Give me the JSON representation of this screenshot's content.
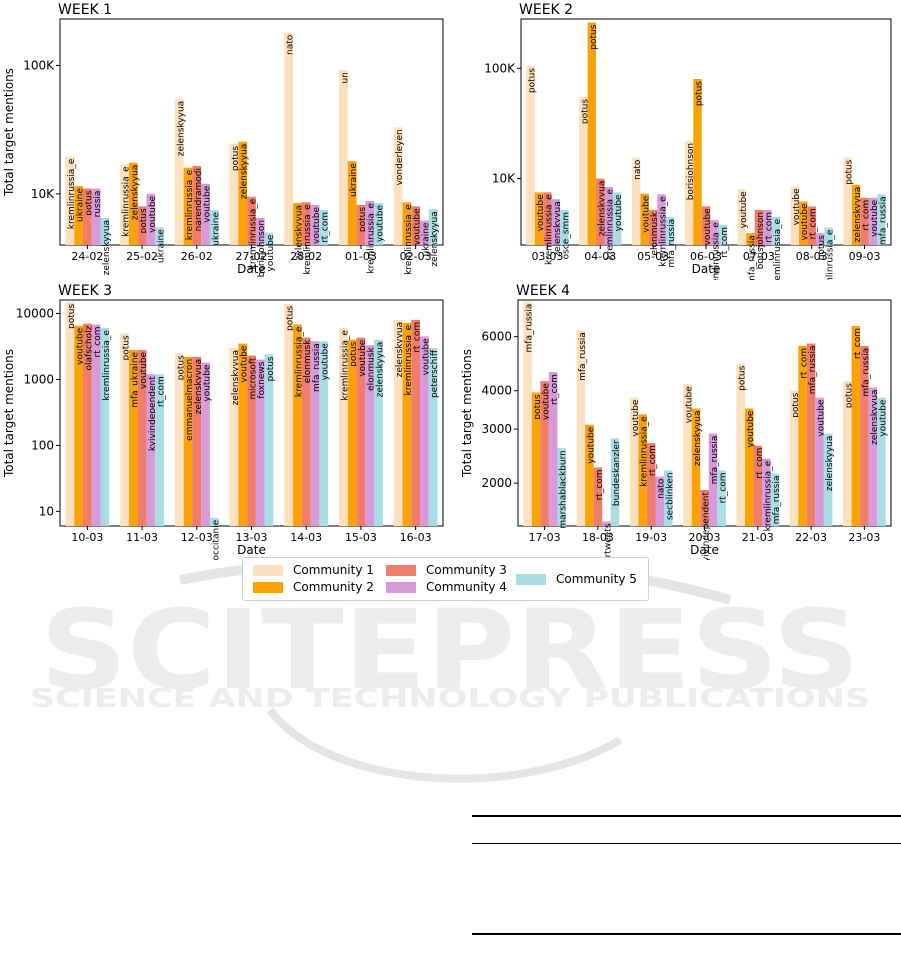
{
  "colors": {
    "Community 1": "#fde0bd",
    "Community 2": "#fca209",
    "Community 3": "#f07c6c",
    "Community 4": "#d79ada",
    "Community 5": "#a7dde3"
  },
  "legend": {
    "items": [
      "Community 1",
      "Community 2",
      "Community 3",
      "Community 4",
      "Community 5"
    ]
  },
  "watermark": {
    "line1": "SCITEPRESS",
    "line2": "SCIENCE AND TECHNOLOGY PUBLICATIONS"
  },
  "chart_data": [
    {
      "type": "bar",
      "title": "WEEK 1",
      "xlabel": "Date",
      "ylabel": "Total target mentions",
      "scale": "log",
      "ylim": [
        4000,
        230000
      ],
      "yticks": [
        10000,
        100000
      ],
      "ytick_labels": [
        "10K",
        "100K"
      ],
      "grid": false,
      "categories": [
        "24-02",
        "25-02",
        "26-02",
        "27-02",
        "28-02",
        "01-03",
        "02-03"
      ],
      "series": [
        {
          "name": "Community 1",
          "values": [
            19500,
            17000,
            55000,
            24500,
            180000,
            92000,
            33000
          ],
          "labels": [
            "kremlinrussia_e",
            "kremlinrussia_e",
            "zelenskyyua",
            "potus",
            "nato",
            "un",
            "vonderleyen"
          ]
        },
        {
          "name": "Community 2",
          "values": [
            11500,
            17500,
            16000,
            25500,
            8500,
            18000,
            8600
          ],
          "labels": [
            "ukraine",
            "zelenskyyua",
            "kremlinrussia_e",
            "zelenskyyua",
            "zelenskyyua",
            "ukraine",
            "kremlinrussia_e"
          ]
        },
        {
          "name": "Community 3",
          "values": [
            11000,
            8000,
            16500,
            9500,
            8600,
            8200,
            8000
          ],
          "labels": [
            "potus",
            "potus",
            "narendramodi",
            "kremlinrussia_e",
            "kremlinrussia_e",
            "potus",
            "youtube"
          ]
        },
        {
          "name": "Community 4",
          "values": [
            11000,
            10000,
            12000,
            6500,
            8200,
            8800,
            6200
          ],
          "labels": [
            "russia",
            "youtube",
            "youtube",
            "borisjohnson",
            "youtube",
            "kremlinrussia_e",
            "ukraine"
          ]
        },
        {
          "name": "Community 5",
          "values": [
            6500,
            5500,
            7500,
            5000,
            7500,
            8500,
            7600
          ],
          "labels": [
            "zelenskyyua",
            "ukraine",
            "ukraine",
            "youtube",
            "rt_com",
            "youtube",
            "zelenskyyua"
          ]
        }
      ]
    },
    {
      "type": "bar",
      "title": "WEEK 2",
      "xlabel": "Date",
      "ylabel": "",
      "scale": "log",
      "ylim": [
        2500,
        280000
      ],
      "yticks": [
        10000,
        100000
      ],
      "ytick_labels": [
        "10K",
        "100K"
      ],
      "grid": false,
      "categories": [
        "03-03",
        "04-03",
        "05-03",
        "06-03",
        "07-03",
        "08-03",
        "09-03"
      ],
      "series": [
        {
          "name": "Community 1",
          "values": [
            105000,
            55000,
            15500,
            22000,
            8000,
            8500,
            15500
          ],
          "labels": [
            "potus",
            "potus",
            "nato",
            "borisjohnson",
            "youtube",
            "youtube",
            "potus"
          ]
        },
        {
          "name": "Community 2",
          "values": [
            7500,
            260000,
            7300,
            80000,
            3200,
            6200,
            8800
          ],
          "labels": [
            "youtube",
            "potus",
            "youtube",
            "potus",
            "mfa_russia",
            "youtube",
            "zelenskyyua"
          ]
        },
        {
          "name": "Community 3",
          "values": [
            7500,
            10000,
            5200,
            5600,
            5200,
            5600,
            6700
          ],
          "labels": [
            "kremlinrussia_e",
            "zelenskyyua",
            "elonmusk",
            "youtube",
            "borisjohnson",
            "rt_com",
            "rt_com"
          ]
        },
        {
          "name": "Community 4",
          "values": [
            6500,
            8400,
            7200,
            4200,
            5200,
            3200,
            6700
          ],
          "labels": [
            "zelenskyyua",
            "kremlinrussia_e",
            "kremlinrussia_e",
            "kremlinrussia_e",
            "rt_com",
            "potus",
            "youtube"
          ]
        },
        {
          "name": "Community 5",
          "values": [
            5200,
            7500,
            4500,
            3800,
            4500,
            3600,
            7200
          ],
          "labels": [
            "osce_smm",
            "youtube",
            "mfa_russia",
            "rt_com",
            "kremlinrussia_e",
            "kremlinrussia_e",
            "mfa_russia"
          ]
        }
      ]
    },
    {
      "type": "bar",
      "title": "WEEK 3",
      "xlabel": "Date",
      "ylabel": "Total target mentions",
      "scale": "log",
      "ylim": [
        6,
        16000
      ],
      "yticks": [
        10,
        100,
        1000,
        10000
      ],
      "ytick_labels": [
        "10",
        "100",
        "1000",
        "10000"
      ],
      "grid": false,
      "categories": [
        "10-03",
        "11-03",
        "12-03",
        "13-03",
        "14-03",
        "15-03",
        "16-03"
      ],
      "series": [
        {
          "name": "Community 1",
          "values": [
            15000,
            5000,
            2500,
            3000,
            14000,
            6000,
            8000
          ],
          "labels": [
            "potus",
            "potus",
            "potus",
            "zelenskyyua",
            "potus",
            "kremlinrussia_e",
            "zelenskyyua"
          ]
        },
        {
          "name": "Community 2",
          "values": [
            6500,
            2800,
            2200,
            3500,
            6800,
            4000,
            7200
          ],
          "labels": [
            "youtube",
            "mfa_ukraine",
            "emmanuelmacron",
            "youtube",
            "kremlinrussia_e",
            "potus",
            "kremlinrussia_e"
          ]
        },
        {
          "name": "Community 3",
          "values": [
            7000,
            2800,
            2200,
            2300,
            4300,
            4300,
            8000
          ],
          "labels": [
            "olafscholz",
            "youtube",
            "zelenskyyua",
            "microsoft",
            "elonmusk",
            "youtube",
            "rt_com"
          ]
        },
        {
          "name": "Community 4",
          "values": [
            6800,
            1200,
            1800,
            2000,
            3800,
            3300,
            4500
          ],
          "labels": [
            "rt_com",
            "kyivindependent",
            "youtube",
            "foxnews",
            "mfa_russia",
            "elonmusk",
            "youtube"
          ]
        },
        {
          "name": "Community 5",
          "values": [
            6000,
            1200,
            8,
            2400,
            3800,
            4000,
            3000
          ],
          "labels": [
            "kremlinrussia_e",
            "rt_com",
            "occitanie",
            "potus",
            "youtube",
            "zelenskyyua",
            "peterschiff"
          ]
        }
      ]
    },
    {
      "type": "bar",
      "title": "WEEK 4",
      "xlabel": "Date",
      "ylabel": "Total target mentions",
      "scale": "log",
      "ylim": [
        1450,
        7900
      ],
      "yticks": [
        2000,
        3000,
        4000,
        6000
      ],
      "ytick_labels": [
        "2000",
        "3000",
        "4000",
        "6000"
      ],
      "grid": false,
      "categories": [
        "17-03",
        "18-03",
        "19-03",
        "20-03",
        "21-03",
        "22-03",
        "23-03"
      ],
      "series": [
        {
          "name": "Community 1",
          "values": [
            7800,
            6300,
            3800,
            4200,
            4900,
            4000,
            4300
          ],
          "labels": [
            "mfa_russia",
            "mfa_russia",
            "youtube",
            "youtube",
            "potus",
            "potus",
            "potus"
          ]
        },
        {
          "name": "Community 2",
          "values": [
            3950,
            3100,
            3350,
            3500,
            3500,
            5600,
            6500
          ],
          "labels": [
            "potus",
            "youtube",
            "kremlinrussia_e",
            "zelenskyyua",
            "youtube",
            "rt_com",
            "rt_com"
          ]
        },
        {
          "name": "Community 3",
          "values": [
            4300,
            2250,
            2700,
            1900,
            2650,
            5700,
            5600
          ],
          "labels": [
            "youtube",
            "rt_com",
            "rt_com",
            "kyivindependent",
            "rt_com",
            "mfa_russia",
            "mfa_russia"
          ]
        },
        {
          "name": "Community 4",
          "values": [
            4600,
            1500,
            2100,
            2900,
            2400,
            3800,
            4100
          ],
          "labels": [
            "rt_com",
            "joncoopertweets",
            "nato",
            "mfa_russia",
            "kremlinrussia_e",
            "youtube",
            "zelenskyyua"
          ]
        },
        {
          "name": "Community 5",
          "values": [
            2600,
            2800,
            2200,
            2200,
            2150,
            2900,
            3800
          ],
          "labels": [
            "marshablackburn",
            "bundeskanzler",
            "secblinken",
            "rt_com",
            "mfa_russia",
            "zelenskyyua",
            "youtube"
          ]
        }
      ]
    }
  ]
}
